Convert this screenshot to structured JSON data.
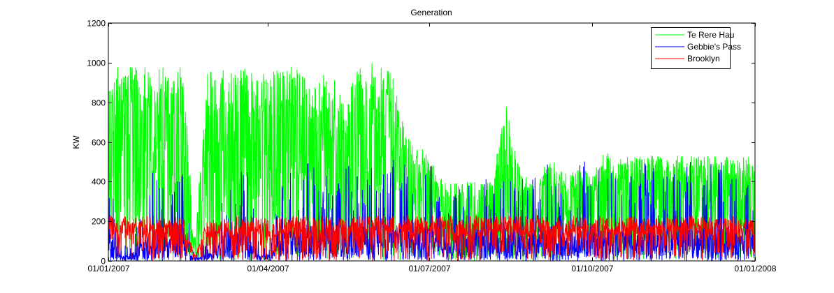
{
  "chart_data": {
    "type": "line",
    "title": "Generation",
    "xlabel": "",
    "ylabel": "KW",
    "x_start": "01/01/2007",
    "x_end": "01/01/2008",
    "xticks": [
      "01/01/2007",
      "01/04/2007",
      "01/07/2007",
      "01/10/2007",
      "01/01/2008"
    ],
    "ylim": [
      0,
      1200
    ],
    "yticks": [
      0,
      200,
      400,
      600,
      800,
      1000,
      1200
    ],
    "grid": false,
    "legend_position": "top-right",
    "series": [
      {
        "name": "Te Rere Hau",
        "color": "#00ff00",
        "envelope": [
          [
            "01/01/2007",
            980
          ],
          [
            "08/01/2007",
            980
          ],
          [
            "15/01/2007",
            980
          ],
          [
            "22/01/2007",
            980
          ],
          [
            "29/01/2007",
            980
          ],
          [
            "05/02/2007",
            980
          ],
          [
            "12/02/2007",
            980
          ],
          [
            "19/02/2007",
            120
          ],
          [
            "26/02/2007",
            970
          ],
          [
            "05/03/2007",
            970
          ],
          [
            "12/03/2007",
            950
          ],
          [
            "19/03/2007",
            980
          ],
          [
            "26/03/2007",
            950
          ],
          [
            "02/04/2007",
            950
          ],
          [
            "09/04/2007",
            980
          ],
          [
            "16/04/2007",
            990
          ],
          [
            "23/04/2007",
            930
          ],
          [
            "30/04/2007",
            980
          ],
          [
            "07/05/2007",
            970
          ],
          [
            "14/05/2007",
            780
          ],
          [
            "21/05/2007",
            1000
          ],
          [
            "28/05/2007",
            1000
          ],
          [
            "04/06/2007",
            1000
          ],
          [
            "11/06/2007",
            930
          ],
          [
            "18/06/2007",
            620
          ],
          [
            "25/06/2007",
            600
          ],
          [
            "02/07/2007",
            500
          ],
          [
            "09/07/2007",
            410
          ],
          [
            "16/07/2007",
            400
          ],
          [
            "23/07/2007",
            400
          ],
          [
            "30/07/2007",
            400
          ],
          [
            "06/08/2007",
            400
          ],
          [
            "13/08/2007",
            820
          ],
          [
            "20/08/2007",
            500
          ],
          [
            "27/08/2007",
            400
          ],
          [
            "03/09/2007",
            480
          ],
          [
            "10/09/2007",
            500
          ],
          [
            "17/09/2007",
            450
          ],
          [
            "24/09/2007",
            480
          ],
          [
            "01/10/2007",
            430
          ],
          [
            "08/10/2007",
            550
          ],
          [
            "15/10/2007",
            530
          ],
          [
            "22/10/2007",
            530
          ],
          [
            "29/10/2007",
            530
          ],
          [
            "05/11/2007",
            530
          ],
          [
            "12/11/2007",
            530
          ],
          [
            "19/11/2007",
            530
          ],
          [
            "26/11/2007",
            530
          ],
          [
            "03/12/2007",
            530
          ],
          [
            "10/12/2007",
            530
          ],
          [
            "17/12/2007",
            530
          ],
          [
            "24/12/2007",
            530
          ],
          [
            "31/12/2007",
            530
          ]
        ]
      },
      {
        "name": "Gebbie's Pass",
        "color": "#0000ff",
        "envelope": [
          [
            "01/01/2007",
            530
          ],
          [
            "08/01/2007",
            80
          ],
          [
            "15/01/2007",
            120
          ],
          [
            "22/01/2007",
            350
          ],
          [
            "29/01/2007",
            520
          ],
          [
            "05/02/2007",
            350
          ],
          [
            "12/02/2007",
            520
          ],
          [
            "19/02/2007",
            60
          ],
          [
            "26/02/2007",
            100
          ],
          [
            "05/03/2007",
            300
          ],
          [
            "12/03/2007",
            400
          ],
          [
            "19/03/2007",
            520
          ],
          [
            "26/03/2007",
            150
          ],
          [
            "02/04/2007",
            100
          ],
          [
            "09/04/2007",
            400
          ],
          [
            "16/04/2007",
            500
          ],
          [
            "23/04/2007",
            520
          ],
          [
            "30/04/2007",
            500
          ],
          [
            "07/05/2007",
            520
          ],
          [
            "14/05/2007",
            500
          ],
          [
            "21/05/2007",
            510
          ],
          [
            "28/05/2007",
            520
          ],
          [
            "04/06/2007",
            500
          ],
          [
            "11/06/2007",
            520
          ],
          [
            "18/06/2007",
            510
          ],
          [
            "25/06/2007",
            520
          ],
          [
            "02/07/2007",
            520
          ],
          [
            "09/07/2007",
            300
          ],
          [
            "16/07/2007",
            350
          ],
          [
            "23/07/2007",
            400
          ],
          [
            "30/07/2007",
            520
          ],
          [
            "06/08/2007",
            350
          ],
          [
            "13/08/2007",
            520
          ],
          [
            "20/08/2007",
            500
          ],
          [
            "27/08/2007",
            400
          ],
          [
            "03/09/2007",
            500
          ],
          [
            "10/09/2007",
            510
          ],
          [
            "17/09/2007",
            350
          ],
          [
            "24/09/2007",
            510
          ],
          [
            "01/10/2007",
            530
          ],
          [
            "08/10/2007",
            500
          ],
          [
            "15/10/2007",
            500
          ],
          [
            "22/10/2007",
            520
          ],
          [
            "29/10/2007",
            510
          ],
          [
            "05/11/2007",
            520
          ],
          [
            "12/11/2007",
            450
          ],
          [
            "19/11/2007",
            500
          ],
          [
            "26/11/2007",
            520
          ],
          [
            "03/12/2007",
            500
          ],
          [
            "10/12/2007",
            520
          ],
          [
            "17/12/2007",
            500
          ],
          [
            "24/12/2007",
            520
          ],
          [
            "31/12/2007",
            500
          ]
        ]
      },
      {
        "name": "Brooklyn",
        "color": "#ff0000",
        "envelope": [
          [
            "01/01/2007",
            230
          ],
          [
            "08/01/2007",
            230
          ],
          [
            "15/01/2007",
            220
          ],
          [
            "22/01/2007",
            230
          ],
          [
            "29/01/2007",
            230
          ],
          [
            "05/02/2007",
            220
          ],
          [
            "12/02/2007",
            230
          ],
          [
            "19/02/2007",
            30
          ],
          [
            "26/02/2007",
            210
          ],
          [
            "05/03/2007",
            210
          ],
          [
            "12/03/2007",
            220
          ],
          [
            "19/03/2007",
            230
          ],
          [
            "26/03/2007",
            230
          ],
          [
            "02/04/2007",
            210
          ],
          [
            "09/04/2007",
            230
          ],
          [
            "16/04/2007",
            230
          ],
          [
            "23/04/2007",
            230
          ],
          [
            "30/04/2007",
            230
          ],
          [
            "07/05/2007",
            230
          ],
          [
            "14/05/2007",
            230
          ],
          [
            "21/05/2007",
            230
          ],
          [
            "28/05/2007",
            230
          ],
          [
            "04/06/2007",
            230
          ],
          [
            "11/06/2007",
            230
          ],
          [
            "18/06/2007",
            230
          ],
          [
            "25/06/2007",
            230
          ],
          [
            "02/07/2007",
            230
          ],
          [
            "09/07/2007",
            230
          ],
          [
            "16/07/2007",
            230
          ],
          [
            "23/07/2007",
            230
          ],
          [
            "30/07/2007",
            230
          ],
          [
            "06/08/2007",
            230
          ],
          [
            "13/08/2007",
            230
          ],
          [
            "20/08/2007",
            230
          ],
          [
            "27/08/2007",
            230
          ],
          [
            "03/09/2007",
            230
          ],
          [
            "10/09/2007",
            230
          ],
          [
            "17/09/2007",
            230
          ],
          [
            "24/09/2007",
            230
          ],
          [
            "01/10/2007",
            230
          ],
          [
            "08/10/2007",
            230
          ],
          [
            "15/10/2007",
            230
          ],
          [
            "22/10/2007",
            230
          ],
          [
            "29/10/2007",
            230
          ],
          [
            "05/11/2007",
            230
          ],
          [
            "12/11/2007",
            230
          ],
          [
            "19/11/2007",
            230
          ],
          [
            "26/11/2007",
            230
          ],
          [
            "03/12/2007",
            230
          ],
          [
            "10/12/2007",
            230
          ],
          [
            "17/12/2007",
            230
          ],
          [
            "24/12/2007",
            230
          ],
          [
            "31/12/2007",
            230
          ]
        ]
      }
    ]
  }
}
